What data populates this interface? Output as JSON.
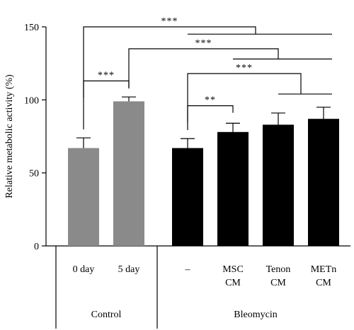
{
  "chart_data": {
    "type": "bar",
    "ylabel": "Relative metabolic activity (%)",
    "ylim": [
      0,
      150
    ],
    "yticks": [
      0,
      50,
      100,
      150
    ],
    "groups": [
      {
        "label": "Control",
        "start": 0,
        "end": 1
      },
      {
        "label": "Bleomycin",
        "start": 2,
        "end": 5
      }
    ],
    "bars": [
      {
        "label": [
          "0 day"
        ],
        "value": 67,
        "error": 7,
        "color": "#8a8a8a"
      },
      {
        "label": [
          "5 day"
        ],
        "value": 99,
        "error": 3,
        "color": "#8a8a8a"
      },
      {
        "label": [
          "–"
        ],
        "value": 67,
        "error": 6.5,
        "color": "#000000"
      },
      {
        "label": [
          "MSC",
          "CM"
        ],
        "value": 78,
        "error": 6,
        "color": "#000000"
      },
      {
        "label": [
          "Tenon",
          "CM"
        ],
        "value": 83,
        "error": 8,
        "color": "#000000"
      },
      {
        "label": [
          "METn",
          "CM"
        ],
        "value": 87,
        "error": 8,
        "color": "#000000"
      }
    ],
    "significance": [
      {
        "text": "***",
        "type": "pair",
        "left": 0,
        "right": 1,
        "y": 113
      },
      {
        "text": "**",
        "type": "pair",
        "left": 2,
        "right": 3,
        "y": 96
      },
      {
        "text": "***",
        "type": "one-vs-group",
        "left": 2,
        "right_from": 4,
        "right_to": 5,
        "y": 118,
        "bar_y": 104
      },
      {
        "text": "***",
        "type": "one-vs-group",
        "left": 1,
        "right_from": 3,
        "right_to": 5,
        "y": 135,
        "bar_y": 128
      },
      {
        "text": "***",
        "type": "one-vs-group",
        "left": 0,
        "right_from": 2,
        "right_to": 5,
        "y": 150,
        "bar_y": 145
      }
    ]
  }
}
